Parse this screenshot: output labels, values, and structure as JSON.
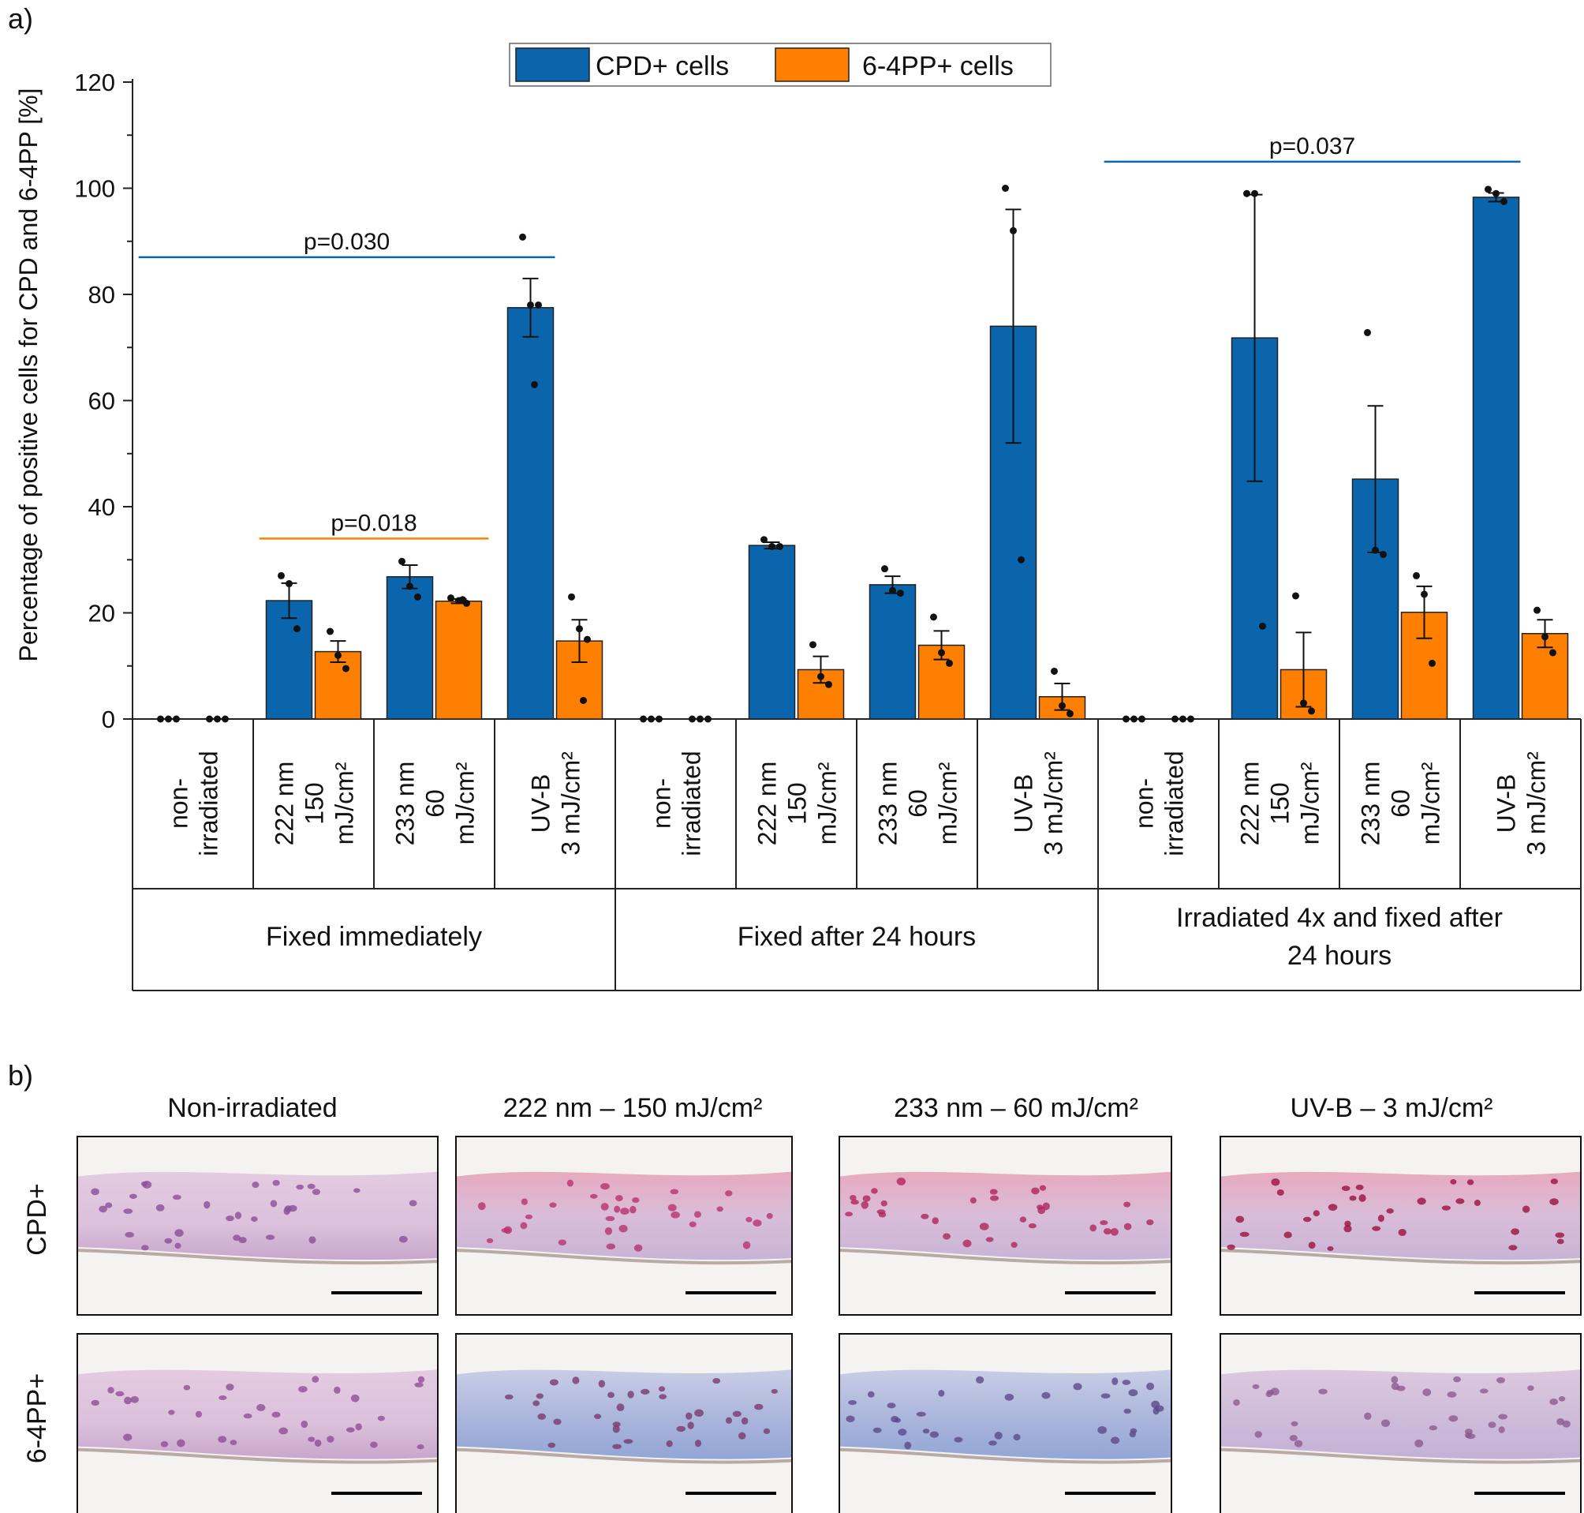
{
  "panel_a_label": "a)",
  "panel_b_label": "b)",
  "chart_data": {
    "type": "bar",
    "title": "",
    "ylabel": "Percentage of positive cells for CPD and 6-4PP [%]",
    "xlabel": "",
    "ylim": [
      0,
      120
    ],
    "yticks": [
      "0",
      "20",
      "40",
      "60",
      "80",
      "100",
      "120"
    ],
    "legend": {
      "placement": "top-center",
      "entries": [
        {
          "name": "CPD+ cells",
          "color": "#0a65ad"
        },
        {
          "name": "6-4PP+ cells",
          "color": "#ff8000"
        }
      ]
    },
    "groups": [
      {
        "label": "Fixed immediately",
        "conditions": [
          {
            "label_lines": [
              "non-",
              "irradiated"
            ],
            "cpd": {
              "mean": 0,
              "sem": 0,
              "points": [
                0,
                0,
                0
              ]
            },
            "pp": {
              "mean": 0,
              "sem": 0,
              "points": [
                0,
                0,
                0
              ]
            }
          },
          {
            "label_lines": [
              "222 nm",
              "150",
              "mJ/cm²"
            ],
            "cpd": {
              "mean": 22.3,
              "sem": 3.3,
              "points": [
                27,
                25.5,
                17
              ]
            },
            "pp": {
              "mean": 12.7,
              "sem": 2,
              "points": [
                16.5,
                12,
                9.5
              ]
            }
          },
          {
            "label_lines": [
              "233 nm",
              "60",
              "mJ/cm²"
            ],
            "cpd": {
              "mean": 26.8,
              "sem": 2.2,
              "points": [
                29.7,
                25,
                23
              ]
            },
            "pp": {
              "mean": 22.2,
              "sem": 0.4,
              "points": [
                22.8,
                22.3,
                21.8,
                22.5
              ]
            }
          },
          {
            "label_lines": [
              "UV-B",
              "3 mJ/cm²"
            ],
            "cpd": {
              "mean": 77.5,
              "sem": 5.5,
              "points": [
                90.8,
                78,
                78,
                63
              ]
            },
            "pp": {
              "mean": 14.7,
              "sem": 4,
              "points": [
                23,
                17,
                15,
                3.5
              ]
            }
          }
        ]
      },
      {
        "label": "Fixed after 24 hours",
        "conditions": [
          {
            "label_lines": [
              "non-",
              "irradiated"
            ],
            "cpd": {
              "mean": 0,
              "sem": 0,
              "points": [
                0,
                0,
                0
              ]
            },
            "pp": {
              "mean": 0,
              "sem": 0,
              "points": [
                0,
                0,
                0
              ]
            }
          },
          {
            "label_lines": [
              "222 nm",
              "150",
              "mJ/cm²"
            ],
            "cpd": {
              "mean": 32.7,
              "sem": 0.6,
              "points": [
                33.8,
                32.5,
                32.5
              ]
            },
            "pp": {
              "mean": 9.3,
              "sem": 2.5,
              "points": [
                14,
                8,
                6.5
              ]
            }
          },
          {
            "label_lines": [
              "233 nm",
              "60",
              "mJ/cm²"
            ],
            "cpd": {
              "mean": 25.3,
              "sem": 1.6,
              "points": [
                28.3,
                24.2,
                23.7
              ]
            },
            "pp": {
              "mean": 13.9,
              "sem": 2.7,
              "points": [
                19.2,
                12.5,
                10.5
              ]
            }
          },
          {
            "label_lines": [
              "UV-B",
              "3 mJ/cm²"
            ],
            "cpd": {
              "mean": 74,
              "sem": 22,
              "points": [
                100,
                92,
                30
              ]
            },
            "pp": {
              "mean": 4.2,
              "sem": 2.5,
              "points": [
                9,
                2.5,
                1
              ]
            }
          }
        ]
      },
      {
        "label": "Irradiated 4x and fixed after 24 hours",
        "label_lines": [
          "Irradiated 4x and fixed after",
          "24 hours"
        ],
        "conditions": [
          {
            "label_lines": [
              "non-",
              "irradiated"
            ],
            "cpd": {
              "mean": 0,
              "sem": 0,
              "points": [
                0,
                0,
                0
              ]
            },
            "pp": {
              "mean": 0,
              "sem": 0,
              "points": [
                0,
                0,
                0
              ]
            }
          },
          {
            "label_lines": [
              "222 nm",
              "150",
              "mJ/cm²"
            ],
            "cpd": {
              "mean": 71.8,
              "sem": 27,
              "points": [
                99,
                99,
                17.5
              ]
            },
            "pp": {
              "mean": 9.3,
              "sem": 7,
              "points": [
                23.2,
                3,
                1.5
              ]
            }
          },
          {
            "label_lines": [
              "233 nm",
              "60",
              "mJ/cm²"
            ],
            "cpd": {
              "mean": 45.2,
              "sem": 13.8,
              "points": [
                72.8,
                31.8,
                31
              ]
            },
            "pp": {
              "mean": 20.1,
              "sem": 4.9,
              "points": [
                27,
                23.5,
                10.5
              ]
            }
          },
          {
            "label_lines": [
              "UV-B",
              "3 mJ/cm²"
            ],
            "cpd": {
              "mean": 98.3,
              "sem": 0.8,
              "points": [
                99.8,
                99,
                97.5
              ]
            },
            "pp": {
              "mean": 16.1,
              "sem": 2.6,
              "points": [
                20.5,
                15.5,
                12.5
              ]
            }
          }
        ]
      }
    ],
    "annotations": [
      {
        "text": "p=0.030",
        "from": [
          0,
          0
        ],
        "to": [
          0,
          3
        ],
        "y": 87,
        "color": "#0a65ad"
      },
      {
        "text": "p=0.018",
        "from": [
          0,
          1
        ],
        "to": [
          0,
          2
        ],
        "y": 34,
        "color": "#ff8000"
      },
      {
        "text": "p=0.037",
        "from": [
          2,
          0
        ],
        "to": [
          2,
          3
        ],
        "y": 105,
        "color": "#0a65ad"
      }
    ]
  },
  "micrographs": {
    "columns": [
      "Non-irradiated",
      "222 nm – 150 mJ/cm²",
      "233 nm – 60 mJ/cm²",
      "UV-B – 3 mJ/cm²"
    ],
    "rows": [
      "CPD+",
      "6-4PP+"
    ]
  }
}
